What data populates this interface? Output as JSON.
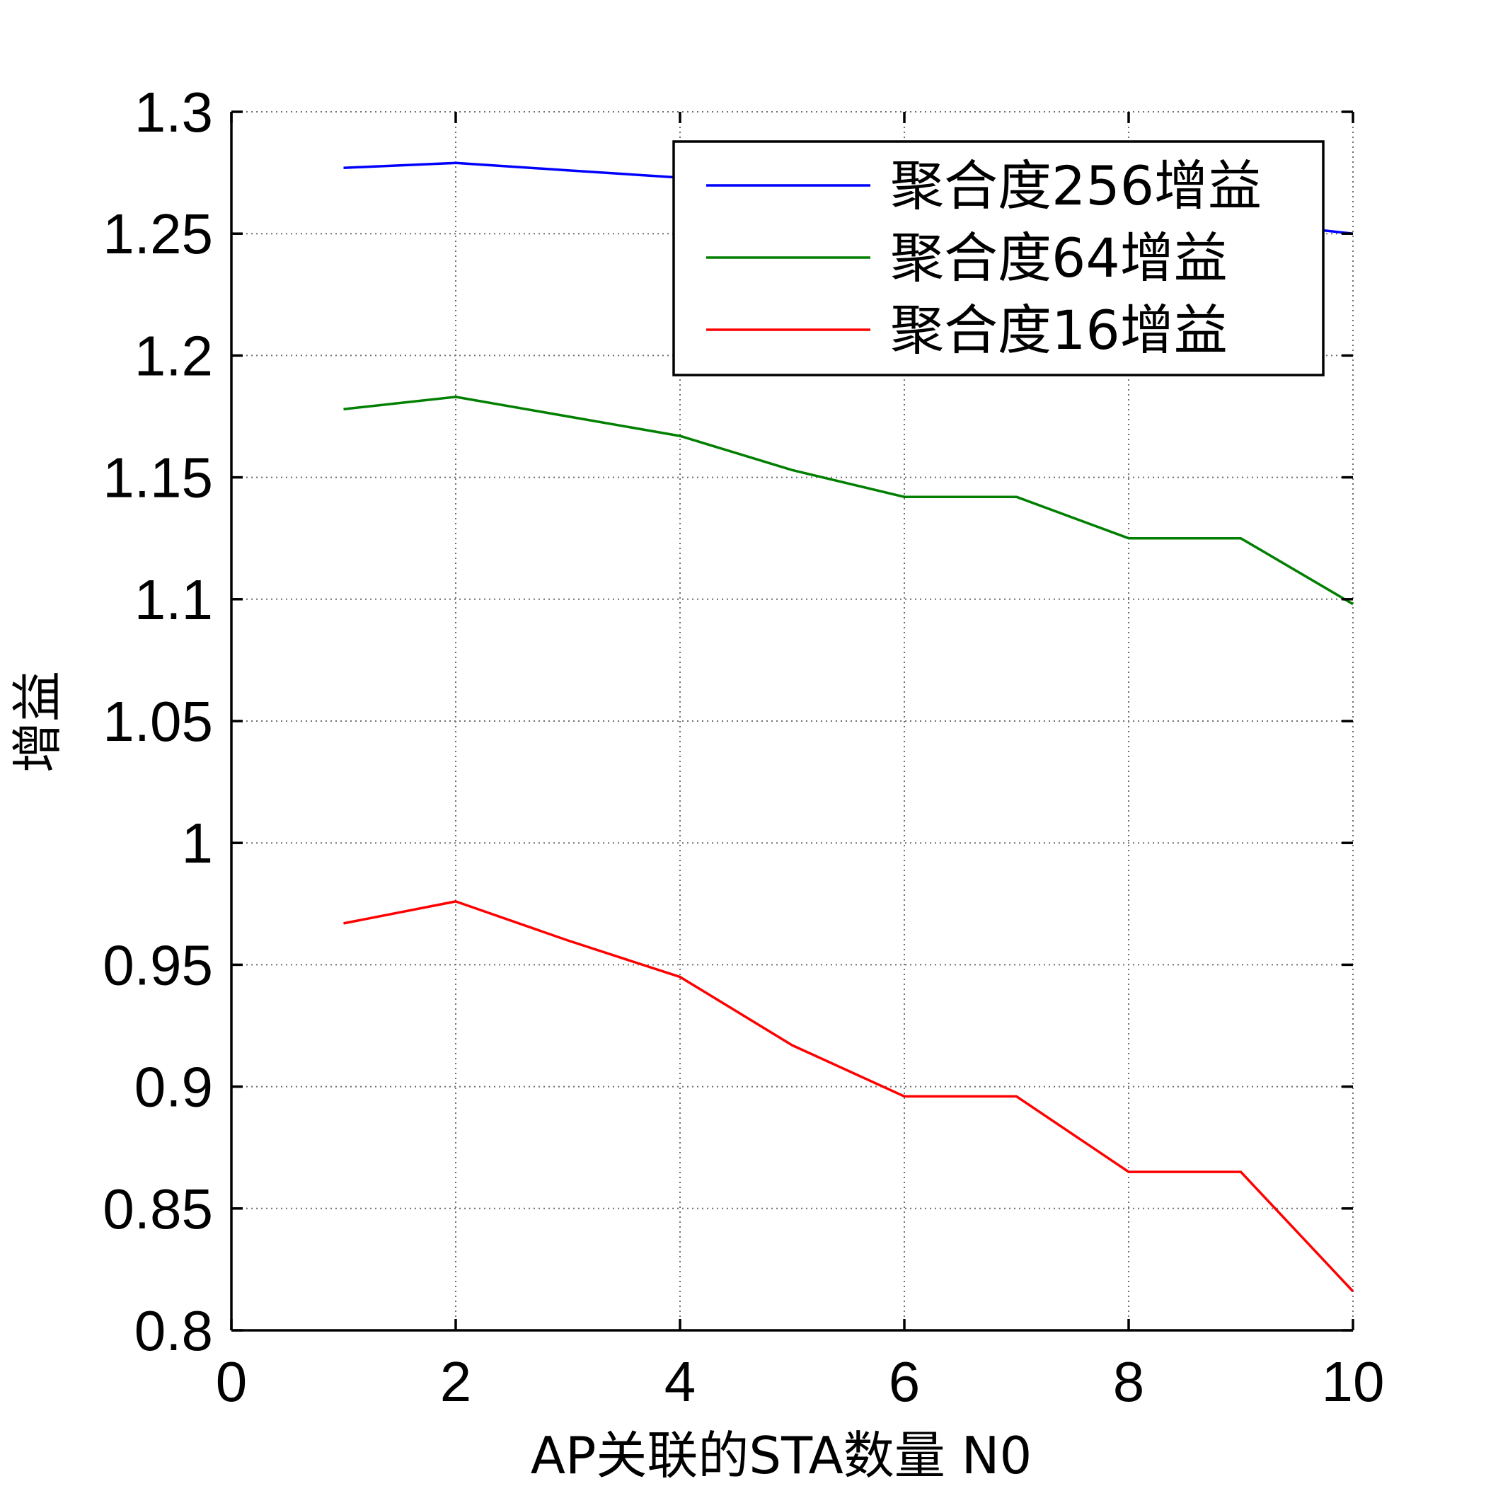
{
  "chart_data": {
    "type": "line",
    "xlabel": "AP关联的STA数量 N0",
    "ylabel": "增益",
    "xlim": [
      0,
      10
    ],
    "ylim": [
      0.8,
      1.3
    ],
    "xticks": [
      0,
      2,
      4,
      6,
      8,
      10
    ],
    "yticks": [
      0.8,
      0.85,
      0.9,
      0.95,
      1,
      1.05,
      1.1,
      1.15,
      1.2,
      1.25,
      1.3
    ],
    "xtick_labels": [
      "0",
      "2",
      "4",
      "6",
      "8",
      "10"
    ],
    "ytick_labels": [
      "0.8",
      "0.85",
      "0.9",
      "0.95",
      "1",
      "1.05",
      "1.1",
      "1.15",
      "1.2",
      "1.25",
      "1.3"
    ],
    "grid": true,
    "legend_position": "top-right",
    "x": [
      1,
      2,
      3,
      4,
      5,
      6,
      7,
      8,
      9,
      10
    ],
    "series": [
      {
        "name": "聚合度256增益",
        "color": "#0000ff",
        "values": [
          1.277,
          1.279,
          1.276,
          1.273,
          1.27,
          1.266,
          1.263,
          1.259,
          1.255,
          1.25
        ]
      },
      {
        "name": "聚合度64增益",
        "color": "#007f00",
        "values": [
          1.178,
          1.183,
          1.175,
          1.167,
          1.153,
          1.142,
          1.142,
          1.125,
          1.125,
          1.098
        ]
      },
      {
        "name": "聚合度16增益",
        "color": "#ff0000",
        "values": [
          0.967,
          0.976,
          0.96,
          0.945,
          0.917,
          0.896,
          0.896,
          0.865,
          0.865,
          0.816
        ]
      }
    ]
  }
}
